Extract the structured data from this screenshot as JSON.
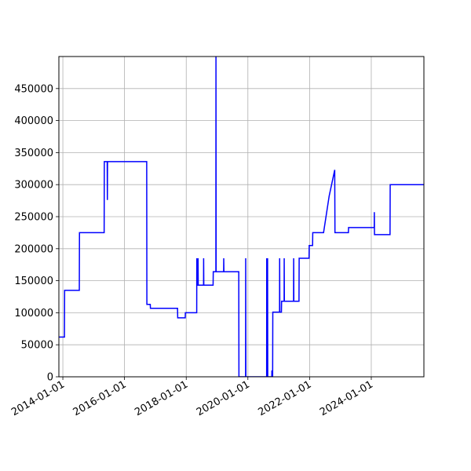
{
  "chart_data": {
    "type": "line",
    "title": "",
    "xlabel": "",
    "ylabel": "",
    "x_axis_type": "date",
    "xlim": [
      "2013-11-15",
      "2025-09-15"
    ],
    "ylim": [
      0,
      500000
    ],
    "grid": true,
    "line_color": "#0000ff",
    "grid_color": "#b0b0b0",
    "x_ticks": [
      "2014-01-01",
      "2016-01-01",
      "2018-01-01",
      "2020-01-01",
      "2022-01-01",
      "2024-01-01"
    ],
    "y_ticks": [
      0,
      50000,
      100000,
      150000,
      200000,
      250000,
      300000,
      350000,
      400000,
      450000
    ],
    "series": [
      {
        "points": [
          [
            "2013-11-15",
            62000
          ],
          [
            "2014-01-20",
            62000
          ],
          [
            "2014-01-22",
            135000
          ],
          [
            "2014-07-15",
            135000
          ],
          [
            "2014-07-17",
            225000
          ],
          [
            "2015-05-05",
            225000
          ],
          [
            "2015-05-07",
            336000
          ],
          [
            "2015-06-10",
            336000
          ],
          [
            "2015-06-12",
            276000
          ],
          [
            "2015-06-14",
            336000
          ],
          [
            "2016-09-20",
            336000
          ],
          [
            "2016-09-22",
            113000
          ],
          [
            "2016-11-01",
            113000
          ],
          [
            "2016-11-03",
            107000
          ],
          [
            "2017-09-20",
            107000
          ],
          [
            "2017-09-22",
            92000
          ],
          [
            "2017-12-20",
            92000
          ],
          [
            "2017-12-22",
            100000
          ],
          [
            "2018-05-05",
            100000
          ],
          [
            "2018-05-06",
            185000
          ],
          [
            "2018-05-08",
            143000
          ],
          [
            "2018-05-20",
            143000
          ],
          [
            "2018-05-21",
            185000
          ],
          [
            "2018-05-23",
            143000
          ],
          [
            "2018-07-25",
            143000
          ],
          [
            "2018-07-26",
            185000
          ],
          [
            "2018-07-28",
            143000
          ],
          [
            "2018-11-15",
            143000
          ],
          [
            "2018-11-17",
            164000
          ],
          [
            "2018-12-18",
            164000
          ],
          [
            "2018-12-19",
            500000
          ],
          [
            "2018-12-21",
            164000
          ],
          [
            "2019-03-20",
            164000
          ],
          [
            "2019-03-21",
            185000
          ],
          [
            "2019-03-23",
            164000
          ],
          [
            "2019-09-15",
            164000
          ],
          [
            "2019-09-17",
            0
          ],
          [
            "2019-12-05",
            0
          ],
          [
            "2019-12-06",
            185000
          ],
          [
            "2019-12-08",
            0
          ],
          [
            "2020-08-10",
            0
          ],
          [
            "2020-08-11",
            185000
          ],
          [
            "2020-08-13",
            0
          ],
          [
            "2020-08-20",
            0
          ],
          [
            "2020-08-21",
            185000
          ],
          [
            "2020-08-23",
            0
          ],
          [
            "2020-10-10",
            0
          ],
          [
            "2020-10-11",
            10000
          ],
          [
            "2020-10-13",
            0
          ],
          [
            "2020-10-20",
            0
          ],
          [
            "2020-10-22",
            101000
          ],
          [
            "2021-01-10",
            101000
          ],
          [
            "2021-01-11",
            185000
          ],
          [
            "2021-01-13",
            101000
          ],
          [
            "2021-02-01",
            101000
          ],
          [
            "2021-02-03",
            118000
          ],
          [
            "2021-03-05",
            118000
          ],
          [
            "2021-03-06",
            185000
          ],
          [
            "2021-03-08",
            118000
          ],
          [
            "2021-06-25",
            118000
          ],
          [
            "2021-06-26",
            185000
          ],
          [
            "2021-06-28",
            118000
          ],
          [
            "2021-08-28",
            118000
          ],
          [
            "2021-08-30",
            185000
          ],
          [
            "2021-12-25",
            185000
          ],
          [
            "2021-12-27",
            205000
          ],
          [
            "2022-02-05",
            205000
          ],
          [
            "2022-02-07",
            225000
          ],
          [
            "2022-06-15",
            225000
          ],
          [
            "2022-08-20",
            282000
          ],
          [
            "2022-10-25",
            323000
          ],
          [
            "2022-10-28",
            225000
          ],
          [
            "2023-04-05",
            225000
          ],
          [
            "2023-04-07",
            233000
          ],
          [
            "2024-02-05",
            233000
          ],
          [
            "2024-02-06",
            257000
          ],
          [
            "2024-02-08",
            222000
          ],
          [
            "2024-08-10",
            222000
          ],
          [
            "2024-08-12",
            300000
          ],
          [
            "2025-09-15",
            300000
          ]
        ]
      }
    ]
  }
}
